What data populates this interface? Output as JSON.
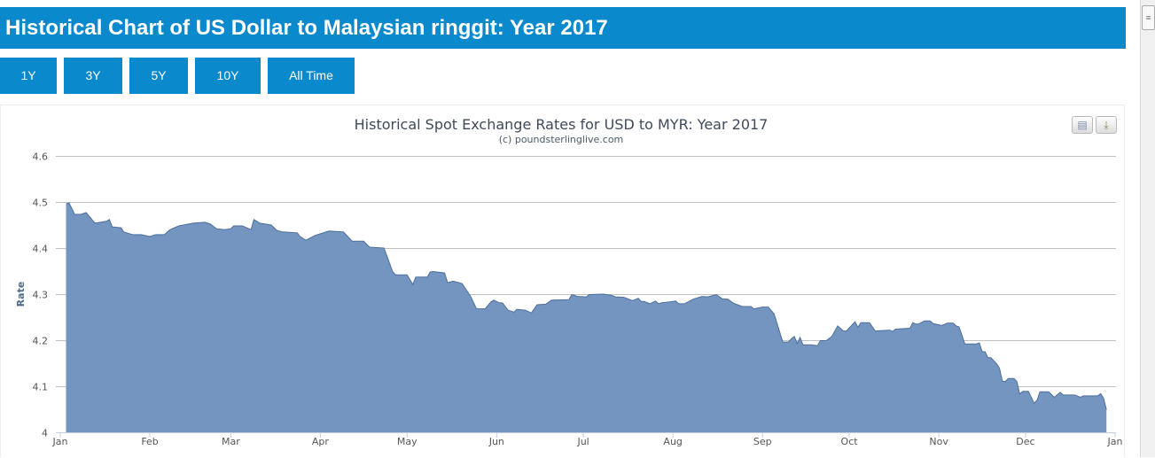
{
  "header": {
    "title": "Historical Chart of US Dollar to Malaysian ringgit: Year 2017"
  },
  "range_buttons": [
    "1Y",
    "3Y",
    "5Y",
    "10Y",
    "All Time"
  ],
  "colors": {
    "brand": "#0a89cc",
    "area_fill": "#7395bf",
    "area_line": "#4e6f9e"
  },
  "icons": {
    "print": "print-icon",
    "download": "download-icon"
  },
  "chart_data": {
    "type": "area",
    "title": "Historical Spot Exchange Rates for USD to MYR: Year 2017",
    "subtitle": "(c) poundsterlinglive.com",
    "xlabel": "",
    "ylabel": "Rate",
    "ylim": [
      4,
      4.6
    ],
    "yticks": [
      "4",
      "4.1",
      "4.2",
      "4.3",
      "4.4",
      "4.5",
      "4.6"
    ],
    "xlim": [
      "2017-01-01",
      "2018-01-01"
    ],
    "xticks": [
      "Jan",
      "Feb",
      "Mar",
      "Apr",
      "May",
      "Jun",
      "Jul",
      "Aug",
      "Sep",
      "Oct",
      "Nov",
      "Dec",
      "Jan"
    ],
    "grid": true,
    "legend": "none",
    "x": [
      "2017-01-03",
      "2017-01-04",
      "2017-01-06",
      "2017-01-08",
      "2017-01-10",
      "2017-01-11",
      "2017-01-13",
      "2017-01-17",
      "2017-01-18",
      "2017-01-19",
      "2017-01-22",
      "2017-01-23",
      "2017-01-26",
      "2017-01-29",
      "2017-02-01",
      "2017-02-03",
      "2017-02-06",
      "2017-02-08",
      "2017-02-11",
      "2017-02-16",
      "2017-02-20",
      "2017-02-22",
      "2017-02-24",
      "2017-02-27",
      "2017-03-01",
      "2017-03-02",
      "2017-03-05",
      "2017-03-08",
      "2017-03-09",
      "2017-03-11",
      "2017-03-15",
      "2017-03-17",
      "2017-03-19",
      "2017-03-24",
      "2017-03-25",
      "2017-03-27",
      "2017-03-30",
      "2017-04-01",
      "2017-04-04",
      "2017-04-09",
      "2017-04-12",
      "2017-04-16",
      "2017-04-18",
      "2017-04-23",
      "2017-04-26",
      "2017-04-27",
      "2017-05-01",
      "2017-05-03",
      "2017-05-04",
      "2017-05-08",
      "2017-05-09",
      "2017-05-10",
      "2017-05-14",
      "2017-05-15",
      "2017-05-17",
      "2017-05-20",
      "2017-05-23",
      "2017-05-25",
      "2017-05-28",
      "2017-05-30",
      "2017-05-31",
      "2017-06-02",
      "2017-06-03",
      "2017-06-05",
      "2017-06-07",
      "2017-06-08",
      "2017-06-11",
      "2017-06-13",
      "2017-06-15",
      "2017-06-18",
      "2017-06-20",
      "2017-06-26",
      "2017-06-27",
      "2017-06-29",
      "2017-07-02",
      "2017-07-03",
      "2017-07-08",
      "2017-07-11",
      "2017-07-12",
      "2017-07-15",
      "2017-07-18",
      "2017-07-20",
      "2017-07-21",
      "2017-07-22",
      "2017-07-24",
      "2017-07-26",
      "2017-07-27",
      "2017-07-28",
      "2017-07-31",
      "2017-08-02",
      "2017-08-03",
      "2017-08-05",
      "2017-08-08",
      "2017-08-11",
      "2017-08-13",
      "2017-08-16",
      "2017-08-18",
      "2017-08-20",
      "2017-08-22",
      "2017-08-25",
      "2017-08-28",
      "2017-08-29",
      "2017-09-01",
      "2017-09-03",
      "2017-09-05",
      "2017-09-08",
      "2017-09-10",
      "2017-09-11",
      "2017-09-12",
      "2017-09-13",
      "2017-09-14",
      "2017-09-15",
      "2017-09-18",
      "2017-09-20",
      "2017-09-21",
      "2017-09-23",
      "2017-09-25",
      "2017-09-27",
      "2017-09-29",
      "2017-09-30",
      "2017-10-03",
      "2017-10-04",
      "2017-10-05",
      "2017-10-08",
      "2017-10-10",
      "2017-10-15",
      "2017-10-16",
      "2017-10-17",
      "2017-10-22",
      "2017-10-23",
      "2017-10-24",
      "2017-10-25",
      "2017-10-27",
      "2017-10-29",
      "2017-10-30",
      "2017-11-02",
      "2017-11-04",
      "2017-11-06",
      "2017-11-07",
      "2017-11-08",
      "2017-11-10",
      "2017-11-14",
      "2017-11-15",
      "2017-11-16",
      "2017-11-17",
      "2017-11-18",
      "2017-11-19",
      "2017-11-21",
      "2017-11-22",
      "2017-11-23",
      "2017-11-24",
      "2017-11-25",
      "2017-11-27",
      "2017-11-28",
      "2017-11-29",
      "2017-11-30",
      "2017-12-02",
      "2017-12-04",
      "2017-12-05",
      "2017-12-06",
      "2017-12-09",
      "2017-12-11",
      "2017-12-13",
      "2017-12-14",
      "2017-12-18",
      "2017-12-20",
      "2017-12-21",
      "2017-12-26",
      "2017-12-27",
      "2017-12-28",
      "2017-12-29"
    ],
    "series": [
      {
        "values": [
          4.496,
          4.498,
          4.473,
          4.473,
          4.477,
          4.469,
          4.454,
          4.458,
          4.462,
          4.446,
          4.444,
          4.435,
          4.429,
          4.429,
          4.425,
          4.429,
          4.429,
          4.44,
          4.448,
          4.454,
          4.456,
          4.452,
          4.442,
          4.44,
          4.442,
          4.448,
          4.448,
          4.44,
          4.462,
          4.454,
          4.45,
          4.438,
          4.435,
          4.433,
          4.425,
          4.417,
          4.427,
          4.431,
          4.437,
          4.435,
          4.415,
          4.415,
          4.402,
          4.4,
          4.349,
          4.342,
          4.342,
          4.321,
          4.337,
          4.337,
          4.348,
          4.349,
          4.346,
          4.325,
          4.328,
          4.323,
          4.295,
          4.268,
          4.268,
          4.283,
          4.287,
          4.281,
          4.281,
          4.265,
          4.261,
          4.267,
          4.265,
          4.259,
          4.277,
          4.278,
          4.287,
          4.288,
          4.299,
          4.295,
          4.294,
          4.299,
          4.3,
          4.297,
          4.294,
          4.293,
          4.286,
          4.291,
          4.284,
          4.284,
          4.279,
          4.285,
          4.279,
          4.281,
          4.283,
          4.285,
          4.279,
          4.279,
          4.289,
          4.295,
          4.294,
          4.299,
          4.29,
          4.289,
          4.28,
          4.273,
          4.273,
          4.268,
          4.272,
          4.272,
          4.257,
          4.196,
          4.196,
          4.203,
          4.208,
          4.193,
          4.206,
          4.19,
          4.19,
          4.188,
          4.199,
          4.199,
          4.208,
          4.231,
          4.22,
          4.22,
          4.24,
          4.228,
          4.238,
          4.238,
          4.22,
          4.222,
          4.219,
          4.224,
          4.226,
          4.238,
          4.235,
          4.235,
          4.242,
          4.242,
          4.236,
          4.232,
          4.237,
          4.237,
          4.231,
          4.229,
          4.192,
          4.192,
          4.194,
          4.175,
          4.175,
          4.162,
          4.162,
          4.149,
          4.139,
          4.111,
          4.11,
          4.117,
          4.117,
          4.11,
          4.083,
          4.089,
          4.089,
          4.063,
          4.07,
          4.088,
          4.088,
          4.076,
          4.087,
          4.081,
          4.081,
          4.076,
          4.079,
          4.079,
          4.084,
          4.074,
          4.049
        ]
      }
    ]
  }
}
